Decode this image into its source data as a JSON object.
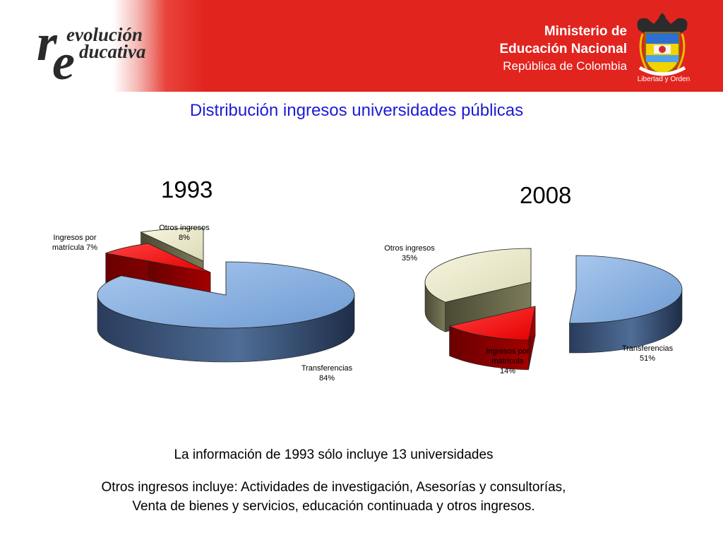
{
  "header": {
    "logo_letter_r": "r",
    "logo_letter_e": "e",
    "logo_line1": "evolución",
    "logo_line2": "ducativa",
    "ministry_line1": "Ministerio de",
    "ministry_line2": "Educación Nacional",
    "ministry_line3": "República de Colombia",
    "seal_motto": "Libertad y Orden",
    "colors": {
      "banner": "#e2241f",
      "text": "#ffffff"
    }
  },
  "title": "Distribución ingresos universidades públicas",
  "chart_data": [
    {
      "type": "pie",
      "title": "1993",
      "categories": [
        "Transferencias",
        "Ingresos por matrícula",
        "Otros ingresos"
      ],
      "values": [
        84,
        7,
        8
      ],
      "unit": "%",
      "labels": [
        "Transferencias\n84%",
        "Ingresos por\nmatrícula 7%",
        "Otros ingresos\n8%"
      ],
      "colors": [
        "#7fa8d8",
        "#ff1a1a",
        "#efeed2"
      ],
      "style": "3d-exploded"
    },
    {
      "type": "pie",
      "title": "2008",
      "categories": [
        "Transferencias",
        "Ingresos por matrícula",
        "Otros ingresos"
      ],
      "values": [
        51,
        14,
        35
      ],
      "unit": "%",
      "labels": [
        "Transferencias\n51%",
        "Ingresos por\nmatrícula\n14%",
        "Otros ingresos\n35%"
      ],
      "colors": [
        "#7fa8d8",
        "#ff1a1a",
        "#efeed2"
      ],
      "style": "3d-exploded"
    }
  ],
  "footnotes": {
    "line1": "La información de 1993 sólo incluye 13 universidades",
    "line2": "Otros ingresos incluye: Actividades de investigación, Asesorías y consultorías,",
    "line3": "Venta de bienes y servicios, educación continuada y otros ingresos."
  }
}
